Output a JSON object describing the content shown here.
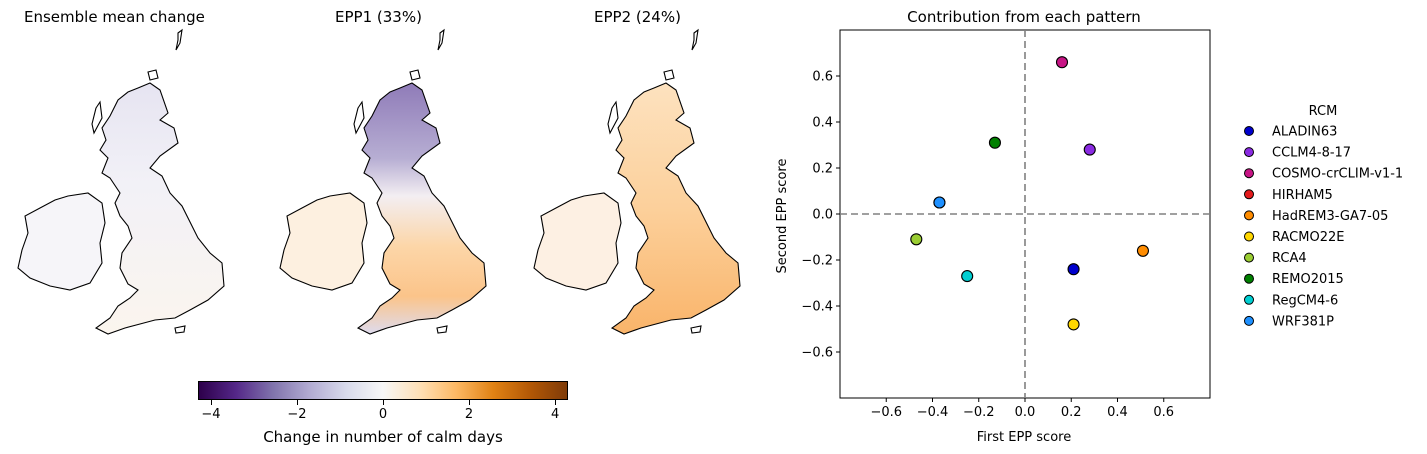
{
  "maps": [
    {
      "title": "Ensemble mean change"
    },
    {
      "title": "EPP1 (33%)"
    },
    {
      "title": "EPP2 (24%)"
    }
  ],
  "colorbar": {
    "label": "Change in number of calm days",
    "range": [
      -4.3,
      4.3
    ],
    "ticks": [
      "-4",
      "-2",
      "0",
      "2",
      "4"
    ],
    "tick_values": [
      -4,
      -2,
      0,
      2,
      4
    ],
    "colormap": "PuOr_r"
  },
  "chart_data": {
    "type": "scatter",
    "title": "Contribution from each pattern",
    "xlabel": "First EPP score",
    "ylabel": "Second EPP score",
    "xlim": [
      -0.8,
      0.8
    ],
    "ylim": [
      -0.8,
      0.8
    ],
    "xticks": [
      -0.6,
      -0.4,
      -0.2,
      0.0,
      0.2,
      0.4,
      0.6
    ],
    "yticks": [
      -0.6,
      -0.4,
      -0.2,
      0.0,
      0.2,
      0.4,
      0.6
    ],
    "xtick_labels": [
      "−0.6",
      "−0.4",
      "−0.2",
      "0.0",
      "0.2",
      "0.4",
      "0.6"
    ],
    "ytick_labels": [
      "−0.6",
      "−0.4",
      "−0.2",
      "0.0",
      "0.2",
      "0.4",
      "0.6"
    ],
    "grid": false,
    "reference_lines": "dashed at x=0 and y=0",
    "legend_title": "RCM",
    "legend_placement": "right, outside",
    "series": [
      {
        "name": "ALADIN63",
        "x": 0.21,
        "y": -0.24,
        "color": "#0000cd"
      },
      {
        "name": "CCLM4-8-17",
        "x": 0.28,
        "y": 0.28,
        "color": "#8a2be2"
      },
      {
        "name": "COSMO-crCLIM-v1-1",
        "x": 0.16,
        "y": 0.66,
        "color": "#c71585"
      },
      {
        "name": "HIRHAM5",
        "x": -0.37,
        "y": 0.05,
        "color": "#e31a1c"
      },
      {
        "name": "HadREM3-GA7-05",
        "x": 0.51,
        "y": -0.16,
        "color": "#ff8c00"
      },
      {
        "name": "RACMO22E",
        "x": 0.21,
        "y": -0.48,
        "color": "#ffd700"
      },
      {
        "name": "RCA4",
        "x": -0.47,
        "y": -0.11,
        "color": "#9acd32"
      },
      {
        "name": "REMO2015",
        "x": -0.13,
        "y": 0.31,
        "color": "#008000"
      },
      {
        "name": "RegCM4-6",
        "x": -0.25,
        "y": -0.27,
        "color": "#00ced1"
      },
      {
        "name": "WRF381P",
        "x": -0.37,
        "y": 0.05,
        "color": "#1e90ff"
      }
    ]
  }
}
